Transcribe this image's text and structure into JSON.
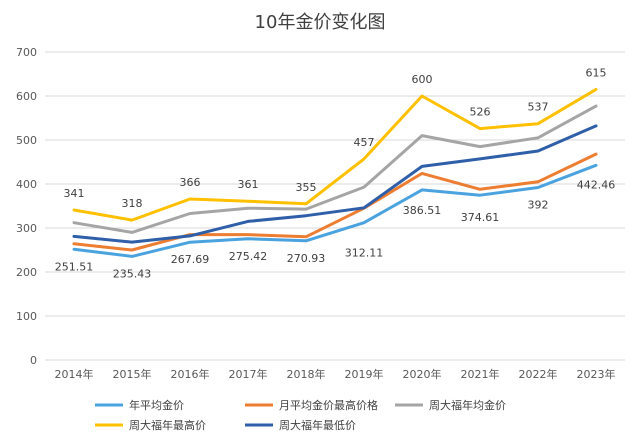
{
  "chart_data": {
    "type": "line",
    "title": "10年金价变化图",
    "xlabel": "",
    "ylabel": "",
    "categories": [
      "2014年",
      "2015年",
      "2016年",
      "2017年",
      "2018年",
      "2019年",
      "2020年",
      "2021年",
      "2022年",
      "2023年"
    ],
    "ylim": [
      0,
      700
    ],
    "yticks": [
      0,
      100,
      200,
      300,
      400,
      500,
      600,
      700
    ],
    "grid": true,
    "legend_position": "bottom",
    "series": [
      {
        "name": "年平均金价",
        "color": "#4aa3df",
        "values": [
          251.51,
          235.43,
          267.69,
          275.42,
          270.93,
          312.11,
          386.51,
          374.61,
          392,
          442.46
        ],
        "labels": [
          "251.51",
          "235.43",
          "267.69",
          "275.42",
          "270.93",
          "312.11",
          "386.51",
          "374.61",
          "392",
          "442.46"
        ]
      },
      {
        "name": "月平均金价最高价格",
        "color": "#ed7d31",
        "values": [
          264,
          250,
          285,
          285,
          280,
          345,
          424,
          388,
          405,
          468
        ],
        "labels": []
      },
      {
        "name": "周大福年均金价",
        "color": "#a5a5a5",
        "values": [
          312,
          290,
          333,
          345,
          343,
          393,
          510,
          485,
          505,
          577
        ],
        "labels": []
      },
      {
        "name": "周大福年最高价",
        "color": "#ffc000",
        "values": [
          341,
          318,
          366,
          361,
          355,
          457,
          600,
          526,
          537,
          615
        ],
        "labels": [
          "341",
          "318",
          "366",
          "361",
          "355",
          "457",
          "600",
          "526",
          "537",
          "615"
        ]
      },
      {
        "name": "周大福年最低价",
        "color": "#2e5fa8",
        "values": [
          281,
          268,
          282,
          315,
          328,
          346,
          440,
          457,
          475,
          532
        ],
        "labels": []
      }
    ]
  }
}
